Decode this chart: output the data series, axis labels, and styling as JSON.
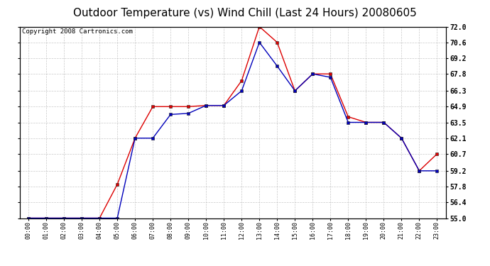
{
  "title": "Outdoor Temperature (vs) Wind Chill (Last 24 Hours) 20080605",
  "copyright": "Copyright 2008 Cartronics.com",
  "x_labels": [
    "00:00",
    "01:00",
    "02:00",
    "03:00",
    "04:00",
    "05:00",
    "06:00",
    "07:00",
    "08:00",
    "09:00",
    "10:00",
    "11:00",
    "12:00",
    "13:00",
    "14:00",
    "15:00",
    "16:00",
    "17:00",
    "18:00",
    "19:00",
    "20:00",
    "21:00",
    "22:00",
    "23:00"
  ],
  "temp_red": [
    55.0,
    55.0,
    55.0,
    55.0,
    55.0,
    58.0,
    62.1,
    64.9,
    64.9,
    64.9,
    65.0,
    65.0,
    67.2,
    72.0,
    70.6,
    66.3,
    67.8,
    67.8,
    64.0,
    63.5,
    63.5,
    62.1,
    59.2,
    60.7
  ],
  "wind_chill_blue": [
    55.0,
    55.0,
    55.0,
    55.0,
    55.0,
    55.0,
    62.1,
    62.1,
    64.2,
    64.3,
    65.0,
    65.0,
    66.3,
    70.6,
    68.5,
    66.3,
    67.8,
    67.5,
    63.5,
    63.5,
    63.5,
    62.1,
    59.2,
    59.2
  ],
  "ylim": [
    55.0,
    72.0
  ],
  "yticks": [
    55.0,
    56.4,
    57.8,
    59.2,
    60.7,
    62.1,
    63.5,
    64.9,
    66.3,
    67.8,
    69.2,
    70.6,
    72.0
  ],
  "red_color": "#dd0000",
  "blue_color": "#0000bb",
  "bg_color": "#ffffff",
  "grid_color": "#bbbbbb",
  "title_fontsize": 11,
  "copyright_fontsize": 6.5,
  "figwidth": 6.9,
  "figheight": 3.75,
  "dpi": 100
}
